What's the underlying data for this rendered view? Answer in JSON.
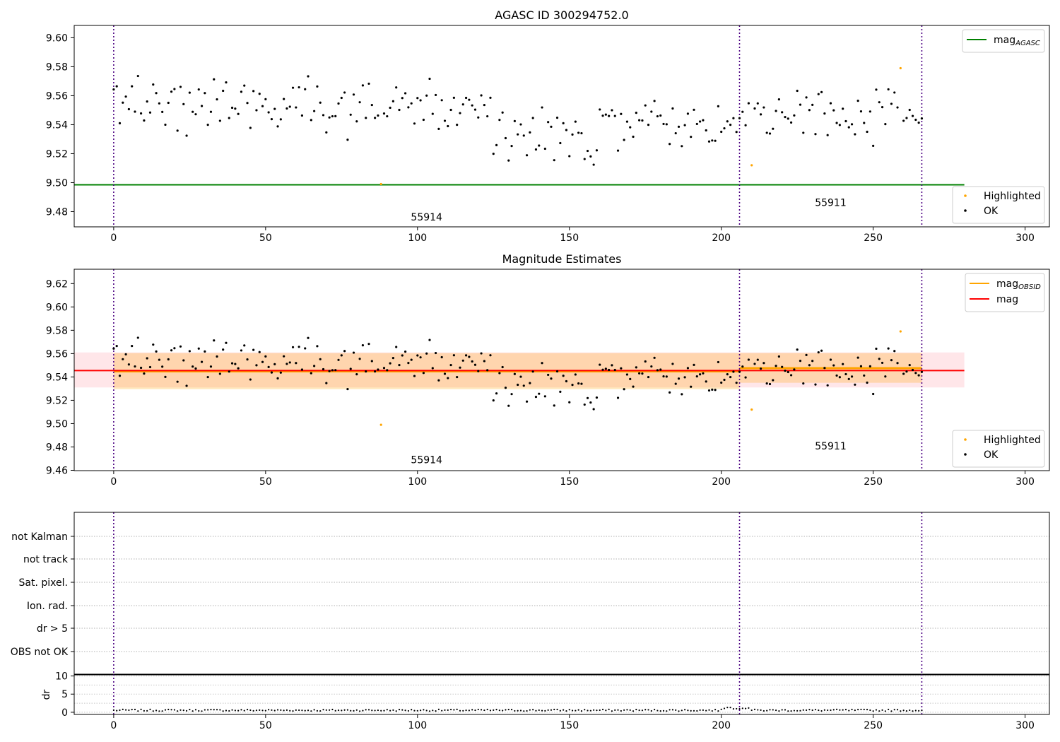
{
  "chart_data": [
    {
      "type": "scatter",
      "title": "AGASC ID 300294752.0",
      "xlim": [
        -13,
        308
      ],
      "ylim": [
        9.4695,
        9.6085
      ],
      "xticks": [
        "0",
        "50",
        "100",
        "150",
        "200",
        "250",
        "300"
      ],
      "yticks": [
        "9.48",
        "9.50",
        "9.52",
        "9.54",
        "9.56",
        "9.58",
        "9.60"
      ],
      "legend_top": {
        "placement": "top-right",
        "entries": [
          {
            "base": "mag",
            "sub": "AGASC",
            "color": "#008000"
          }
        ]
      },
      "legend_bottom": {
        "placement": "bottom-right",
        "entries": [
          {
            "label": "Highlighted",
            "color": "#ffa500"
          },
          {
            "label": "OK",
            "color": "#000000"
          }
        ]
      },
      "vlines": [
        0,
        206,
        266
      ],
      "obsid_labels": [
        {
          "text": "55914",
          "x": 103,
          "y": 9.474
        },
        {
          "text": "55911",
          "x": 236,
          "y": 9.484
        }
      ],
      "mag_agasc": 9.4985,
      "highlighted": [
        [
          88,
          9.499
        ],
        [
          210,
          9.512
        ],
        [
          259,
          9.579
        ]
      ]
    },
    {
      "type": "scatter",
      "title": "Magnitude Estimates",
      "xlim": [
        -13,
        308
      ],
      "ylim": [
        9.4597,
        9.6323
      ],
      "xticks": [
        "0",
        "50",
        "100",
        "150",
        "200",
        "250",
        "300"
      ],
      "yticks": [
        "9.46",
        "9.48",
        "9.50",
        "9.52",
        "9.54",
        "9.56",
        "9.58",
        "9.60",
        "9.62"
      ],
      "legend_top": {
        "placement": "top-right",
        "entries": [
          {
            "base": "mag",
            "sub": "OBSID",
            "color": "#ffa500"
          },
          {
            "base": "mag",
            "sub": "",
            "color": "#ff0000"
          }
        ]
      },
      "legend_bottom": {
        "placement": "bottom-right",
        "entries": [
          {
            "label": "Highlighted",
            "color": "#ffa500"
          },
          {
            "label": "OK",
            "color": "#000000"
          }
        ]
      },
      "vlines": [
        0,
        206,
        266
      ],
      "obsid_labels": [
        {
          "text": "55914",
          "x": 103,
          "y": 9.466
        },
        {
          "text": "55911",
          "x": 236,
          "y": 9.478
        }
      ],
      "mag": 9.5455,
      "mag_band": [
        9.531,
        9.561
      ],
      "obsid_segments": [
        {
          "x0": 0,
          "x1": 206,
          "mag": 9.5448,
          "band": [
            9.5295,
            9.5605
          ]
        },
        {
          "x0": 206,
          "x1": 266,
          "mag": 9.5475,
          "band": [
            9.535,
            9.5605
          ]
        }
      ],
      "highlighted": [
        [
          88,
          9.499
        ],
        [
          210,
          9.512
        ],
        [
          259,
          9.579
        ]
      ]
    },
    {
      "type": "scatter",
      "title": "",
      "xlim": [
        -13,
        308
      ],
      "flag_labels": [
        "not Kalman",
        "not track",
        "Sat. pixel.",
        "Ion. rad.",
        "dr > 5",
        "OBS not OK"
      ],
      "vlines": [
        0,
        206,
        266
      ]
    },
    {
      "type": "scatter",
      "title": "",
      "xlim": [
        -13,
        308
      ],
      "ylim": [
        -0.6,
        10.5
      ],
      "ylabel": "dr",
      "yticks": [
        "0",
        "5",
        "10"
      ],
      "xticks": [
        "0",
        "50",
        "100",
        "150",
        "200",
        "250",
        "300"
      ],
      "vlines": [
        0,
        206,
        266
      ]
    }
  ]
}
